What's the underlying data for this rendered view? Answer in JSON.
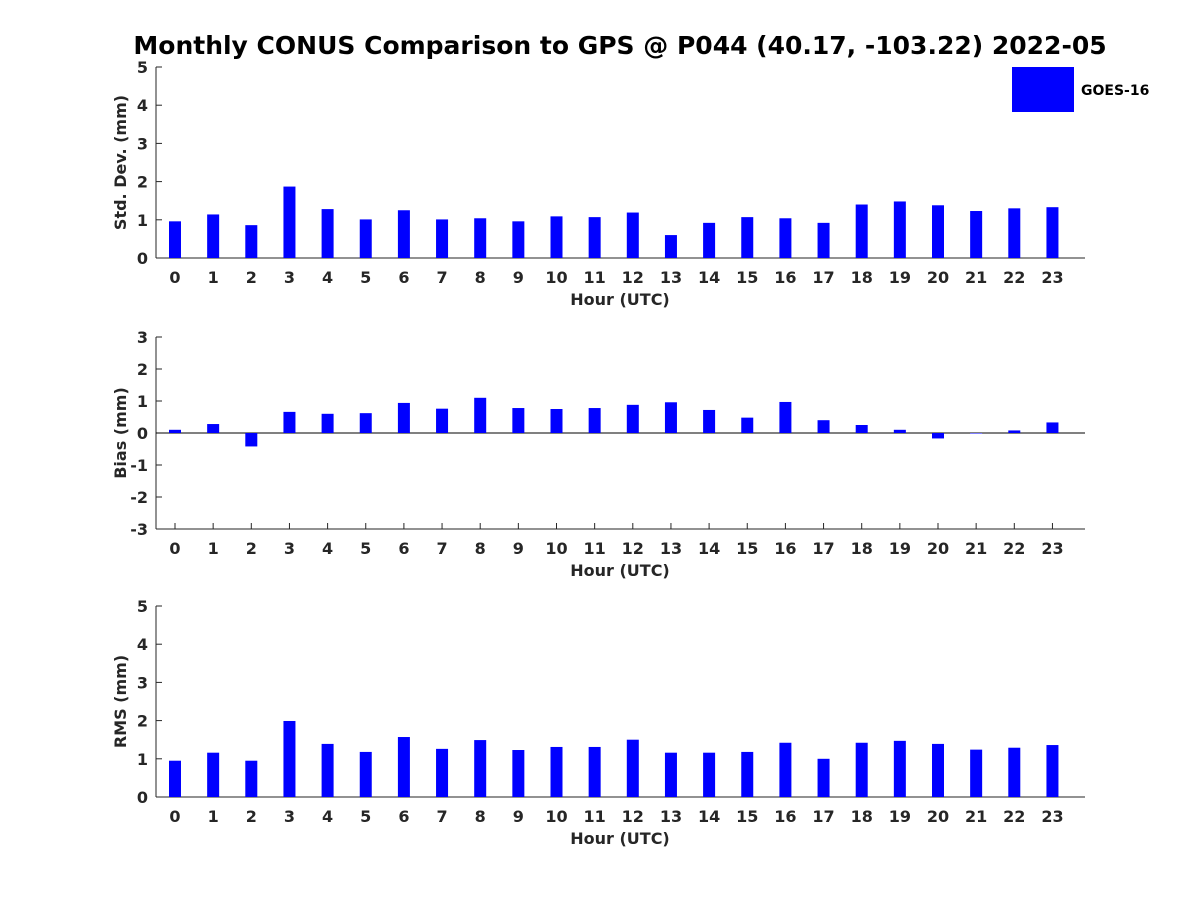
{
  "figure_title": "Monthly CONUS Comparison to GPS @ P044 (40.17, -103.22) 2022-05",
  "legend": {
    "series_name": "GOES-16",
    "color": "#0000ff"
  },
  "chart_data": [
    {
      "type": "bar",
      "title": "Monthly CONUS Comparison to GPS @ P044 (40.17, -103.22) 2022-05",
      "xlabel": "Hour (UTC)",
      "ylabel": "Std. Dev. (mm)",
      "ylim": [
        0,
        5
      ],
      "yticks": [
        0,
        1,
        2,
        3,
        4,
        5
      ],
      "categories": [
        "0",
        "1",
        "2",
        "3",
        "4",
        "5",
        "6",
        "7",
        "8",
        "9",
        "10",
        "11",
        "12",
        "13",
        "14",
        "15",
        "16",
        "17",
        "18",
        "19",
        "20",
        "21",
        "22",
        "23"
      ],
      "series": [
        {
          "name": "GOES-16",
          "color": "#0000ff",
          "values": [
            0.96,
            1.14,
            0.86,
            1.87,
            1.28,
            1.01,
            1.25,
            1.01,
            1.04,
            0.96,
            1.09,
            1.07,
            1.19,
            0.6,
            0.92,
            1.07,
            1.04,
            0.92,
            1.4,
            1.48,
            1.38,
            1.23,
            1.3,
            1.33
          ]
        }
      ],
      "legend_position": "top-right",
      "grid": false
    },
    {
      "type": "bar",
      "xlabel": "Hour (UTC)",
      "ylabel": "Bias (mm)",
      "ylim": [
        -3,
        3
      ],
      "yticks": [
        -3,
        -2,
        -1,
        0,
        1,
        2,
        3
      ],
      "categories": [
        "0",
        "1",
        "2",
        "3",
        "4",
        "5",
        "6",
        "7",
        "8",
        "9",
        "10",
        "11",
        "12",
        "13",
        "14",
        "15",
        "16",
        "17",
        "18",
        "19",
        "20",
        "21",
        "22",
        "23"
      ],
      "series": [
        {
          "name": "GOES-16",
          "color": "#0000ff",
          "values": [
            0.1,
            0.28,
            -0.42,
            0.66,
            0.6,
            0.62,
            0.94,
            0.76,
            1.1,
            0.78,
            0.75,
            0.78,
            0.88,
            0.96,
            0.72,
            0.48,
            0.97,
            0.4,
            0.25,
            0.1,
            -0.17,
            0.0,
            0.08,
            0.33
          ]
        }
      ],
      "zero_line": true,
      "grid": false
    },
    {
      "type": "bar",
      "xlabel": "Hour (UTC)",
      "ylabel": "RMS (mm)",
      "ylim": [
        0,
        5
      ],
      "yticks": [
        0,
        1,
        2,
        3,
        4,
        5
      ],
      "categories": [
        "0",
        "1",
        "2",
        "3",
        "4",
        "5",
        "6",
        "7",
        "8",
        "9",
        "10",
        "11",
        "12",
        "13",
        "14",
        "15",
        "16",
        "17",
        "18",
        "19",
        "20",
        "21",
        "22",
        "23"
      ],
      "series": [
        {
          "name": "GOES-16",
          "color": "#0000ff",
          "values": [
            0.95,
            1.16,
            0.95,
            1.99,
            1.39,
            1.18,
            1.57,
            1.26,
            1.49,
            1.23,
            1.31,
            1.31,
            1.5,
            1.16,
            1.16,
            1.18,
            1.42,
            1.0,
            1.42,
            1.47,
            1.39,
            1.24,
            1.29,
            1.36
          ]
        }
      ],
      "grid": false
    }
  ]
}
